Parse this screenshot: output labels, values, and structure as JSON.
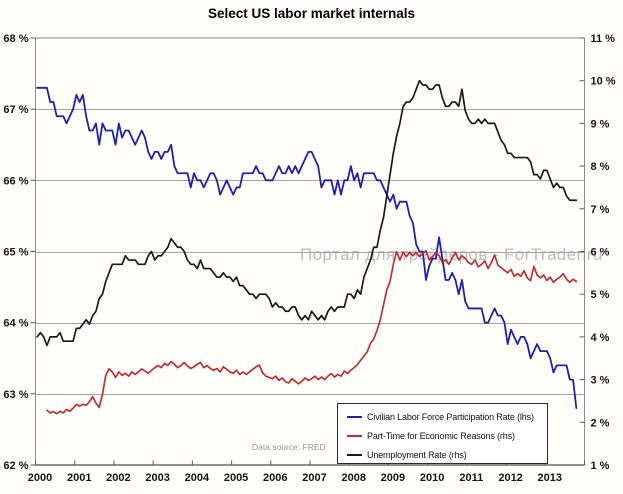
{
  "watermark": "Портал для трейдеров - ForTrader.ru",
  "source_note": "Data source: FRED",
  "chart_data": {
    "type": "line",
    "title": "Select US labor market internals",
    "grid": "horizontal gridlines at whole left-axis percents",
    "legend_position": "inside bottom-right",
    "x_axis": {
      "unit": "year, monthly data 2000-01 through 2013-10",
      "labels": [
        "2000",
        "2001",
        "2002",
        "2003",
        "2004",
        "2005",
        "2006",
        "2007",
        "2008",
        "2009",
        "2010",
        "2011",
        "2012",
        "2013"
      ]
    },
    "left_axis": {
      "min": 62,
      "max": 68,
      "tick_step": 1,
      "labels": [
        "68 %",
        "67 %",
        "66 %",
        "65 %",
        "64 %",
        "63 %",
        "62 %"
      ]
    },
    "right_axis": {
      "min": 1,
      "max": 11,
      "tick_step": 1,
      "labels": [
        "11 %",
        "10 %",
        "9 %",
        "8 %",
        "7 %",
        "6 %",
        "5 %",
        "4 %",
        "3 %",
        "2 %",
        "1 %"
      ]
    },
    "series": [
      {
        "name": "Civilian Labor Force Participation Rate (lhs)",
        "axis": "lhs",
        "color": "#1f1fb4",
        "stroke_width": 1.8,
        "start_month_index": 0,
        "values": [
          67.3,
          67.3,
          67.3,
          67.3,
          67.1,
          67.1,
          66.9,
          66.9,
          66.9,
          66.8,
          66.9,
          67.0,
          67.2,
          67.1,
          67.2,
          66.9,
          66.7,
          66.7,
          66.8,
          66.5,
          66.8,
          66.7,
          66.7,
          66.7,
          66.5,
          66.8,
          66.6,
          66.7,
          66.7,
          66.6,
          66.5,
          66.6,
          66.7,
          66.6,
          66.4,
          66.3,
          66.4,
          66.4,
          66.3,
          66.4,
          66.4,
          66.5,
          66.2,
          66.1,
          66.1,
          66.1,
          66.1,
          65.9,
          66.1,
          66.0,
          66.0,
          65.9,
          66.0,
          66.1,
          66.1,
          66.0,
          65.8,
          65.9,
          66.0,
          65.9,
          65.8,
          65.9,
          65.9,
          66.1,
          66.1,
          66.1,
          66.1,
          66.2,
          66.1,
          66.1,
          66.0,
          66.0,
          66.0,
          66.1,
          66.2,
          66.1,
          66.1,
          66.2,
          66.1,
          66.2,
          66.1,
          66.2,
          66.3,
          66.4,
          66.4,
          66.3,
          66.2,
          65.9,
          66.0,
          66.0,
          66.0,
          65.8,
          66.0,
          65.8,
          66.0,
          66.0,
          66.2,
          66.0,
          66.1,
          65.9,
          66.1,
          66.1,
          66.1,
          66.1,
          66.0,
          66.0,
          65.9,
          65.8,
          65.7,
          65.8,
          65.6,
          65.7,
          65.7,
          65.7,
          65.5,
          65.4,
          65.1,
          65.0,
          65.0,
          64.6,
          64.8,
          64.9,
          64.9,
          65.2,
          64.9,
          64.6,
          64.6,
          64.7,
          64.6,
          64.4,
          64.6,
          64.3,
          64.2,
          64.2,
          64.2,
          64.2,
          64.2,
          64.0,
          64.0,
          64.1,
          64.2,
          64.1,
          64.1,
          64.0,
          63.7,
          63.9,
          63.8,
          63.7,
          63.8,
          63.8,
          63.7,
          63.5,
          63.6,
          63.7,
          63.6,
          63.6,
          63.6,
          63.5,
          63.3,
          63.4,
          63.4,
          63.4,
          63.4,
          63.2,
          63.2,
          62.8
        ]
      },
      {
        "name": "Part-Time for Economic Reasons (rhs)",
        "axis": "rhs",
        "color": "#c03030",
        "stroke_width": 1.7,
        "start_month_index": 3,
        "values": [
          2.28,
          2.22,
          2.25,
          2.2,
          2.26,
          2.22,
          2.3,
          2.26,
          2.33,
          2.42,
          2.38,
          2.42,
          2.4,
          2.48,
          2.6,
          2.45,
          2.35,
          2.65,
          3.1,
          3.25,
          3.18,
          3.05,
          3.18,
          3.1,
          3.15,
          3.08,
          3.18,
          3.12,
          3.18,
          3.25,
          3.2,
          3.15,
          3.22,
          3.28,
          3.33,
          3.28,
          3.38,
          3.33,
          3.42,
          3.36,
          3.28,
          3.33,
          3.4,
          3.32,
          3.26,
          3.3,
          3.36,
          3.4,
          3.28,
          3.33,
          3.26,
          3.22,
          3.26,
          3.18,
          3.3,
          3.24,
          3.18,
          3.15,
          3.22,
          3.12,
          3.18,
          3.12,
          3.18,
          3.24,
          3.3,
          3.34,
          3.16,
          3.08,
          3.05,
          3.02,
          3.08,
          2.98,
          3.04,
          2.95,
          2.92,
          3.02,
          2.96,
          2.9,
          2.96,
          3.04,
          2.98,
          3.02,
          3.08,
          3.0,
          3.06,
          3.0,
          3.08,
          3.14,
          3.06,
          3.12,
          3.08,
          3.2,
          3.14,
          3.22,
          3.28,
          3.35,
          3.45,
          3.55,
          3.65,
          3.85,
          3.95,
          4.15,
          4.4,
          4.75,
          5.1,
          5.3,
          5.7,
          6.0,
          5.8,
          5.98,
          5.88,
          5.98,
          5.9,
          5.98,
          5.88,
          5.95,
          6.02,
          5.8,
          5.88,
          5.98,
          5.9,
          5.74,
          5.8,
          5.7,
          5.85,
          5.98,
          5.8,
          5.9,
          5.84,
          5.74,
          5.7,
          5.8,
          5.64,
          5.7,
          5.78,
          5.6,
          5.74,
          5.92,
          5.68,
          5.62,
          5.56,
          5.5,
          5.58,
          5.42,
          5.48,
          5.42,
          5.55,
          5.38,
          5.32,
          5.65,
          5.45,
          5.38,
          5.45,
          5.32,
          5.4,
          5.28,
          5.35,
          5.4,
          5.48,
          5.35,
          5.28,
          5.35,
          5.3
        ]
      },
      {
        "name": "Unemployment Rate (rhs)",
        "axis": "rhs",
        "color": "#1a1a1a",
        "stroke_width": 1.7,
        "start_month_index": 0,
        "values": [
          4.0,
          4.1,
          4.0,
          3.8,
          4.0,
          4.0,
          4.0,
          4.1,
          3.9,
          3.9,
          3.9,
          3.9,
          4.2,
          4.2,
          4.3,
          4.4,
          4.3,
          4.5,
          4.6,
          4.9,
          5.0,
          5.3,
          5.5,
          5.7,
          5.7,
          5.7,
          5.7,
          5.9,
          5.8,
          5.8,
          5.8,
          5.7,
          5.7,
          5.7,
          5.9,
          6.0,
          5.8,
          5.9,
          5.9,
          6.0,
          6.1,
          6.3,
          6.2,
          6.1,
          6.1,
          6.0,
          5.8,
          5.7,
          5.7,
          5.6,
          5.8,
          5.6,
          5.6,
          5.6,
          5.5,
          5.4,
          5.4,
          5.5,
          5.4,
          5.4,
          5.3,
          5.4,
          5.2,
          5.2,
          5.1,
          5.0,
          5.0,
          4.9,
          5.0,
          5.0,
          5.0,
          4.9,
          4.7,
          4.8,
          4.7,
          4.7,
          4.6,
          4.6,
          4.7,
          4.7,
          4.5,
          4.4,
          4.5,
          4.4,
          4.6,
          4.5,
          4.4,
          4.5,
          4.4,
          4.6,
          4.7,
          4.6,
          4.7,
          4.7,
          4.7,
          5.0,
          5.0,
          4.9,
          5.1,
          5.0,
          5.4,
          5.6,
          5.8,
          6.1,
          6.1,
          6.5,
          6.8,
          7.3,
          7.8,
          8.3,
          8.7,
          9.0,
          9.4,
          9.5,
          9.5,
          9.6,
          9.8,
          10.0,
          9.9,
          9.9,
          9.8,
          9.8,
          9.9,
          9.9,
          9.6,
          9.4,
          9.4,
          9.5,
          9.5,
          9.4,
          9.8,
          9.3,
          9.1,
          9.0,
          9.0,
          9.1,
          9.0,
          9.1,
          9.0,
          9.0,
          9.0,
          8.8,
          8.6,
          8.5,
          8.3,
          8.3,
          8.2,
          8.2,
          8.2,
          8.2,
          8.2,
          8.1,
          7.8,
          7.8,
          7.7,
          7.9,
          7.9,
          7.7,
          7.5,
          7.6,
          7.5,
          7.5,
          7.3,
          7.2,
          7.2,
          7.2
        ]
      }
    ],
    "colors": {
      "gridline": "#a3a3a3",
      "plot_border": "#8c8c8c",
      "bottom_axis": "#4d4d4d",
      "tick": "#5a5a5a",
      "watermark": "#bcbcbc"
    }
  }
}
